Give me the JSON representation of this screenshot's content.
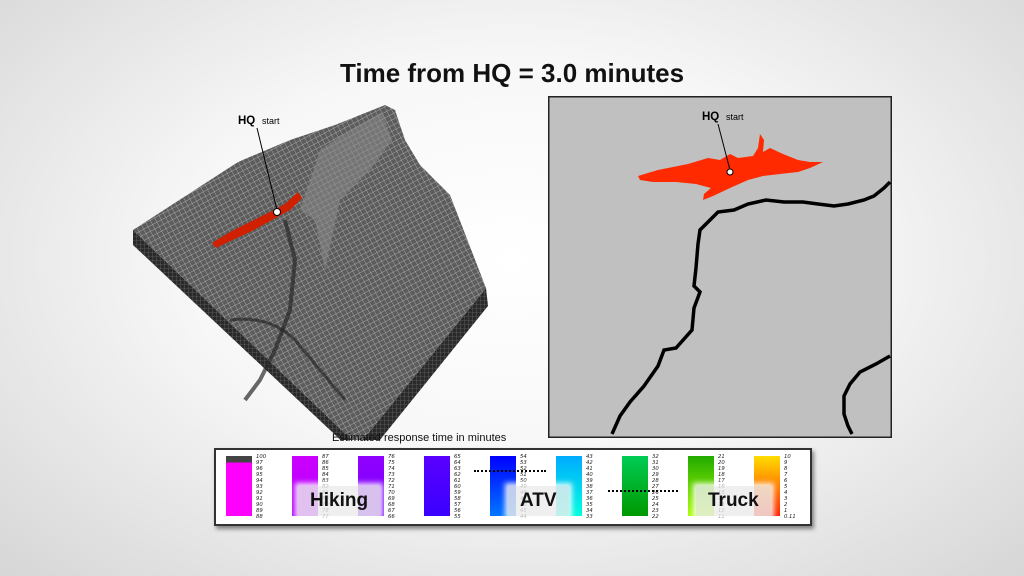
{
  "slide": {
    "title": "Time from HQ = 3.0 minutes"
  },
  "terrain_view": {
    "marker_label": "HQ",
    "marker_sublabel": "start"
  },
  "map_view": {
    "marker_label": "HQ",
    "marker_sublabel": "start"
  },
  "legend": {
    "caption": "Estimated response time in minutes",
    "modes": [
      {
        "label": "Hiking"
      },
      {
        "label": "ATV"
      },
      {
        "label": "Truck"
      }
    ],
    "columns": [
      {
        "colors": [
          "#444444",
          "#ff00ff"
        ],
        "ticks": [
          "100",
          "97",
          "96",
          "95",
          "94",
          "93",
          "92",
          "91",
          "90",
          "89",
          "88"
        ]
      },
      {
        "colors": [
          "#cc00ff",
          "#b000ff"
        ],
        "ticks": [
          "87",
          "86",
          "85",
          "84",
          "83",
          "82",
          "81",
          "80",
          "79",
          "78",
          "77"
        ]
      },
      {
        "colors": [
          "#9000ff",
          "#7a00ff"
        ],
        "ticks": [
          "76",
          "75",
          "74",
          "73",
          "72",
          "71",
          "70",
          "69",
          "68",
          "67",
          "66"
        ]
      },
      {
        "colors": [
          "#5a00ff",
          "#3a00ff"
        ],
        "ticks": [
          "65",
          "64",
          "63",
          "62",
          "61",
          "60",
          "59",
          "58",
          "57",
          "56",
          "55"
        ]
      },
      {
        "colors": [
          "#0000ff",
          "#0077ff"
        ],
        "ticks": [
          "54",
          "53",
          "52",
          "51",
          "50",
          "49",
          "48",
          "47",
          "46",
          "45",
          "44"
        ]
      },
      {
        "colors": [
          "#00aaff",
          "#00ffe0"
        ],
        "ticks": [
          "43",
          "42",
          "41",
          "40",
          "39",
          "38",
          "37",
          "36",
          "35",
          "34",
          "33"
        ]
      },
      {
        "colors": [
          "#00cc55",
          "#009900"
        ],
        "ticks": [
          "32",
          "31",
          "30",
          "29",
          "28",
          "27",
          "26",
          "25",
          "24",
          "23",
          "22"
        ]
      },
      {
        "colors": [
          "#22aa00",
          "#aaff00"
        ],
        "ticks": [
          "21",
          "20",
          "19",
          "18",
          "17",
          "16",
          "15",
          "14",
          "13",
          "12",
          "11"
        ]
      },
      {
        "colors": [
          "#ffdd00",
          "#ff2200"
        ],
        "ticks": [
          "10",
          "9",
          "8",
          "7",
          "6",
          "5",
          "4",
          "3",
          "2",
          "1",
          "0.11"
        ]
      }
    ],
    "colors": {
      "hq_reach": "#ff2a00",
      "terrain": "#5a5a5a",
      "map_background": "#c0c0c0",
      "river": "#000000"
    }
  }
}
